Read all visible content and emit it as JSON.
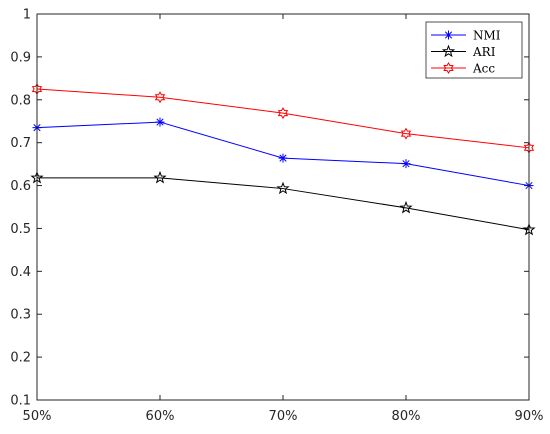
{
  "chart_data": {
    "type": "line",
    "title": "",
    "xlabel": "",
    "ylabel": "",
    "categories": [
      "50%",
      "60%",
      "70%",
      "80%",
      "90%"
    ],
    "ylim": [
      0.1,
      1
    ],
    "yticks": [
      "0.1",
      "0.2",
      "0.3",
      "0.4",
      "0.5",
      "0.6",
      "0.7",
      "0.8",
      "0.9",
      "1"
    ],
    "grid": false,
    "legend_position": "top-right",
    "series": [
      {
        "name": "NMI",
        "values": [
          0.735,
          0.748,
          0.664,
          0.651,
          0.6
        ],
        "color": "#0000ff",
        "marker": "asterisk"
      },
      {
        "name": "ARI",
        "values": [
          0.618,
          0.618,
          0.593,
          0.548,
          0.497
        ],
        "color": "#000000",
        "marker": "star"
      },
      {
        "name": "Acc",
        "values": [
          0.825,
          0.806,
          0.769,
          0.721,
          0.688
        ],
        "color": "#ff0000",
        "marker": "hexagram"
      }
    ]
  }
}
